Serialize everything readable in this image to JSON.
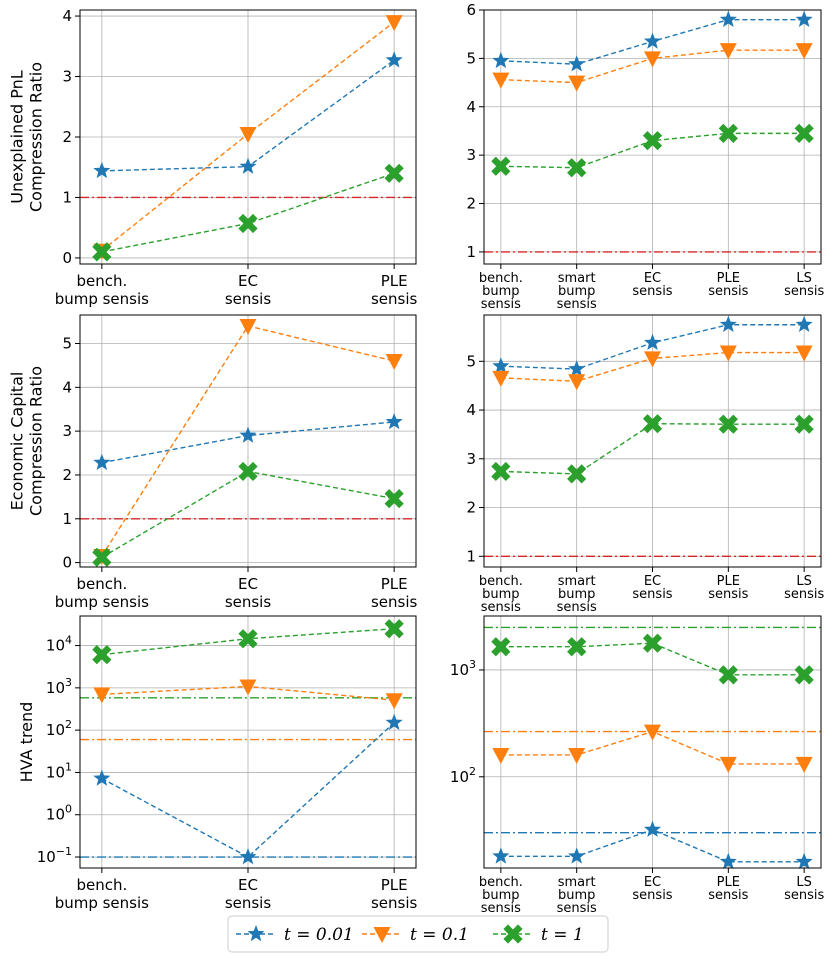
{
  "series_style": [
    {
      "key": "t001",
      "color": "#1f77b4",
      "marker": "star"
    },
    {
      "key": "t01",
      "color": "#ff7f0e",
      "marker": "triangle-down"
    },
    {
      "key": "t1",
      "color": "#2ca02c",
      "marker": "x-filled"
    }
  ],
  "threshold_color": "#d62728",
  "legend": {
    "entries": [
      "t = 0.01",
      "t = 0.1",
      "t = 1"
    ]
  },
  "chart_data": [
    {
      "id": "upnl-left",
      "type": "line",
      "scale": "linear",
      "ylabel": [
        "Unexplained PnL",
        "Compression Ratio"
      ],
      "categories": [
        [
          "bench.",
          "bump sensis"
        ],
        [
          "EC",
          "sensis"
        ],
        [
          "PLE",
          "sensis"
        ]
      ],
      "ylim": [
        -0.1,
        4.1
      ],
      "yticks": [
        {
          "v": 0,
          "t": "0"
        },
        {
          "v": 1,
          "t": "1"
        },
        {
          "v": 2,
          "t": "2"
        },
        {
          "v": 3,
          "t": "3"
        },
        {
          "v": 4,
          "t": "4"
        }
      ],
      "series": [
        {
          "name": "t = 0.01",
          "values": [
            1.44,
            1.51,
            3.27
          ]
        },
        {
          "name": "t = 0.1",
          "values": [
            0.12,
            2.05,
            3.9
          ]
        },
        {
          "name": "t = 1",
          "values": [
            0.1,
            0.57,
            1.4
          ]
        }
      ],
      "hlines": [
        {
          "y": 1,
          "color_key": "red"
        }
      ]
    },
    {
      "id": "upnl-right",
      "type": "line",
      "scale": "linear",
      "ylabel": [],
      "categories": [
        [
          "bench.",
          "bump",
          "sensis"
        ],
        [
          "smart",
          "bump",
          "sensis"
        ],
        [
          "EC",
          "sensis"
        ],
        [
          "PLE",
          "sensis"
        ],
        [
          "LS",
          "sensis"
        ]
      ],
      "ylim": [
        0.75,
        6.0
      ],
      "yticks": [
        {
          "v": 1,
          "t": "1"
        },
        {
          "v": 2,
          "t": "2"
        },
        {
          "v": 3,
          "t": "3"
        },
        {
          "v": 4,
          "t": "4"
        },
        {
          "v": 5,
          "t": "5"
        },
        {
          "v": 6,
          "t": "6"
        }
      ],
      "series": [
        {
          "name": "t = 0.01",
          "values": [
            4.95,
            4.88,
            5.35,
            5.8,
            5.8
          ]
        },
        {
          "name": "t = 0.1",
          "values": [
            4.56,
            4.5,
            5.0,
            5.17,
            5.17
          ]
        },
        {
          "name": "t = 1",
          "values": [
            2.77,
            2.74,
            3.3,
            3.45,
            3.45
          ]
        }
      ],
      "hlines": [
        {
          "y": 1,
          "color_key": "red"
        }
      ]
    },
    {
      "id": "ec-left",
      "type": "line",
      "scale": "linear",
      "ylabel": [
        "Economic Capital",
        "Compression Ratio"
      ],
      "categories": [
        [
          "bench.",
          "bump sensis"
        ],
        [
          "EC",
          "sensis"
        ],
        [
          "PLE",
          "sensis"
        ]
      ],
      "ylim": [
        -0.1,
        5.65
      ],
      "yticks": [
        {
          "v": 0,
          "t": "0"
        },
        {
          "v": 1,
          "t": "1"
        },
        {
          "v": 2,
          "t": "2"
        },
        {
          "v": 3,
          "t": "3"
        },
        {
          "v": 4,
          "t": "4"
        },
        {
          "v": 5,
          "t": "5"
        }
      ],
      "series": [
        {
          "name": "t = 0.01",
          "values": [
            2.28,
            2.9,
            3.21
          ]
        },
        {
          "name": "t = 0.1",
          "values": [
            0.15,
            5.4,
            4.6
          ]
        },
        {
          "name": "t = 1",
          "values": [
            0.12,
            2.08,
            1.46
          ]
        }
      ],
      "hlines": [
        {
          "y": 1,
          "color_key": "red"
        }
      ]
    },
    {
      "id": "ec-right",
      "type": "line",
      "scale": "linear",
      "ylabel": [],
      "categories": [
        [
          "bench.",
          "bump",
          "sensis"
        ],
        [
          "smart",
          "bump",
          "sensis"
        ],
        [
          "EC",
          "sensis"
        ],
        [
          "PLE",
          "sensis"
        ],
        [
          "LS",
          "sensis"
        ]
      ],
      "ylim": [
        0.78,
        5.95
      ],
      "yticks": [
        {
          "v": 1,
          "t": "1"
        },
        {
          "v": 2,
          "t": "2"
        },
        {
          "v": 3,
          "t": "3"
        },
        {
          "v": 4,
          "t": "4"
        },
        {
          "v": 5,
          "t": "5"
        }
      ],
      "series": [
        {
          "name": "t = 0.01",
          "values": [
            4.9,
            4.84,
            5.38,
            5.75,
            5.75
          ]
        },
        {
          "name": "t = 0.1",
          "values": [
            4.66,
            4.59,
            5.06,
            5.18,
            5.18
          ]
        },
        {
          "name": "t = 1",
          "values": [
            2.74,
            2.69,
            3.72,
            3.71,
            3.71
          ]
        }
      ],
      "hlines": [
        {
          "y": 1,
          "color_key": "red"
        }
      ]
    },
    {
      "id": "hva-left",
      "type": "line",
      "scale": "log",
      "ylabel": [
        "HVA trend"
      ],
      "categories": [
        [
          "bench.",
          "bump sensis"
        ],
        [
          "EC",
          "sensis"
        ],
        [
          "PLE",
          "sensis"
        ]
      ],
      "ylim": [
        0.055,
        50000
      ],
      "yticks": [
        {
          "v": 0.1,
          "b": "10",
          "e": "−1"
        },
        {
          "v": 1,
          "b": "10",
          "e": "0"
        },
        {
          "v": 10,
          "b": "10",
          "e": "1"
        },
        {
          "v": 100,
          "b": "10",
          "e": "2"
        },
        {
          "v": 1000,
          "b": "10",
          "e": "3"
        },
        {
          "v": 10000,
          "b": "10",
          "e": "4"
        }
      ],
      "series": [
        {
          "name": "t = 0.01",
          "values": [
            7.2,
            0.1,
            150
          ]
        },
        {
          "name": "t = 0.1",
          "values": [
            700,
            1080,
            510
          ]
        },
        {
          "name": "t = 1",
          "values": [
            6100,
            14500,
            25000
          ]
        }
      ],
      "hlines": [
        {
          "y": 0.1,
          "color_key": "t001"
        },
        {
          "y": 60,
          "color_key": "t01"
        },
        {
          "y": 580,
          "color_key": "t1"
        }
      ]
    },
    {
      "id": "hva-right",
      "type": "line",
      "scale": "log",
      "ylabel": [],
      "categories": [
        [
          "bench.",
          "bump",
          "sensis"
        ],
        [
          "smart",
          "bump",
          "sensis"
        ],
        [
          "EC",
          "sensis"
        ],
        [
          "PLE",
          "sensis"
        ],
        [
          "LS",
          "sensis"
        ]
      ],
      "ylim": [
        14,
        3200
      ],
      "yticks": [
        {
          "v": 100,
          "b": "10",
          "e": "2"
        },
        {
          "v": 1000,
          "b": "10",
          "e": "3"
        }
      ],
      "series": [
        {
          "name": "t = 0.01",
          "values": [
            18,
            18,
            32,
            16,
            16
          ]
        },
        {
          "name": "t = 0.1",
          "values": [
            160,
            160,
            265,
            132,
            132
          ]
        },
        {
          "name": "t = 1",
          "values": [
            1650,
            1650,
            1780,
            900,
            900
          ]
        }
      ],
      "hlines": [
        {
          "y": 30,
          "color_key": "t001"
        },
        {
          "y": 265,
          "color_key": "t01"
        },
        {
          "y": 2500,
          "color_key": "t1"
        }
      ]
    }
  ]
}
